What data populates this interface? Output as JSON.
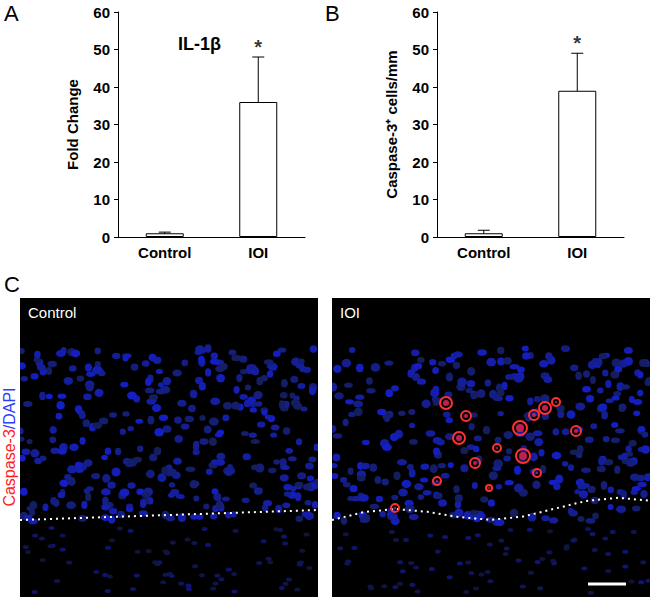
{
  "chart_data": [
    {
      "type": "bar",
      "panel": "A",
      "title": "IL-1β",
      "y_label": "Fold Change",
      "categories": [
        "Control",
        "IOI"
      ],
      "values": [
        1,
        36
      ],
      "errors": [
        0.3,
        12
      ],
      "color": "#ffffff",
      "ylim": [
        0,
        60
      ],
      "yticks": [
        0,
        10,
        20,
        30,
        40,
        50,
        60
      ],
      "grid": false,
      "annotations": [
        {
          "category": "IOI",
          "text": "*"
        }
      ]
    },
    {
      "type": "bar",
      "panel": "B",
      "y_label": "Caspase-3⁺ cells/mm",
      "categories": [
        "Control",
        "IOI"
      ],
      "values": [
        1,
        39
      ],
      "errors": [
        0.8,
        10
      ],
      "color": "#ffffff",
      "ylim": [
        0,
        60
      ],
      "yticks": [
        0,
        10,
        20,
        30,
        40,
        50,
        60
      ],
      "grid": false,
      "annotations": [
        {
          "category": "IOI",
          "text": "*"
        }
      ]
    }
  ],
  "image_panel": {
    "panel": "C",
    "stain": [
      {
        "text": "Caspase-3",
        "color": "#ff2020"
      },
      {
        "text": "/DAPI",
        "color": "#2a3cff"
      }
    ],
    "images": [
      "Control",
      "IOI"
    ]
  }
}
